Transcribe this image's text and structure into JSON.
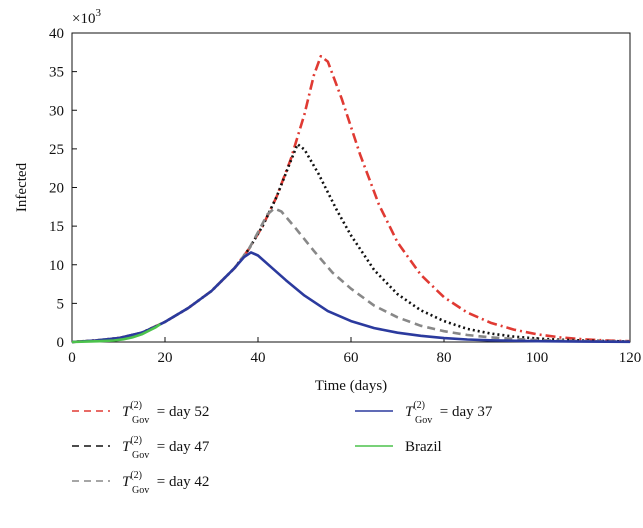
{
  "chart_data": {
    "type": "line",
    "xlabel": "Time (days)",
    "ylabel": "Infected",
    "y_multiplier": "×10",
    "y_multiplier_exp": "3",
    "xlim": [
      0,
      120
    ],
    "ylim": [
      0,
      40
    ],
    "x_ticks": [
      0,
      20,
      40,
      60,
      80,
      100,
      120
    ],
    "y_ticks": [
      0,
      5,
      10,
      15,
      20,
      25,
      30,
      35,
      40
    ],
    "grid": false,
    "legend_position": "bottom",
    "series": [
      {
        "name": "T_Gov^(2) = day 52",
        "legend": {
          "var": "T",
          "sub": "Gov",
          "sup": "(2)",
          "rest": " = day 52"
        },
        "color": "#e03a33",
        "style": "dashdot",
        "x": [
          0,
          5,
          10,
          15,
          20,
          25,
          30,
          35,
          38,
          41,
          44,
          47,
          50,
          52,
          53.5,
          55,
          58,
          62,
          66,
          70,
          75,
          80,
          85,
          90,
          95,
          100,
          105,
          110,
          115,
          120
        ],
        "y": [
          0,
          0.2,
          0.5,
          1.2,
          2.6,
          4.4,
          6.6,
          9.6,
          12.0,
          15.0,
          18.8,
          23.6,
          29.5,
          34.5,
          37.0,
          36.3,
          31.5,
          24.2,
          17.8,
          12.9,
          8.7,
          5.8,
          3.8,
          2.5,
          1.6,
          1.0,
          0.6,
          0.35,
          0.2,
          0.1
        ]
      },
      {
        "name": "T_Gov^(2) = day 47",
        "legend": {
          "var": "T",
          "sub": "Gov",
          "sup": "(2)",
          "rest": " = day 47"
        },
        "color": "#111111",
        "style": "dotted",
        "x": [
          0,
          5,
          10,
          15,
          20,
          25,
          30,
          35,
          38,
          41,
          44,
          46.5,
          48.5,
          50,
          53,
          57,
          60,
          65,
          70,
          75,
          80,
          85,
          90,
          95,
          100,
          105,
          110,
          115,
          120
        ],
        "y": [
          0,
          0.2,
          0.5,
          1.2,
          2.6,
          4.4,
          6.6,
          9.6,
          12.0,
          15.0,
          18.8,
          22.6,
          25.6,
          24.9,
          21.8,
          17.0,
          13.8,
          9.3,
          6.2,
          4.1,
          2.7,
          1.7,
          1.1,
          0.7,
          0.45,
          0.3,
          0.2,
          0.12,
          0.08
        ]
      },
      {
        "name": "T_Gov^(2) = day 42",
        "legend": {
          "var": "T",
          "sub": "Gov",
          "sup": "(2)",
          "rest": " = day 42"
        },
        "color": "#888888",
        "style": "dashed",
        "x": [
          0,
          5,
          10,
          15,
          20,
          25,
          30,
          35,
          38,
          40,
          42,
          43.5,
          45,
          48,
          52,
          56,
          60,
          65,
          70,
          75,
          80,
          85,
          90,
          95,
          100,
          110,
          120
        ],
        "y": [
          0,
          0.2,
          0.5,
          1.2,
          2.6,
          4.4,
          6.6,
          9.6,
          12.0,
          14.2,
          16.5,
          17.3,
          16.9,
          14.8,
          11.8,
          9.0,
          6.9,
          4.7,
          3.2,
          2.1,
          1.4,
          0.9,
          0.6,
          0.4,
          0.25,
          0.1,
          0.05
        ]
      },
      {
        "name": "T_Gov^(2) = day 37",
        "legend": {
          "var": "T",
          "sub": "Gov",
          "sup": "(2)",
          "rest": " = day 37"
        },
        "color": "#2b3a9e",
        "style": "solid",
        "x": [
          0,
          5,
          10,
          15,
          18,
          20,
          25,
          30,
          35,
          37,
          38.5,
          40,
          43,
          46,
          50,
          55,
          60,
          65,
          70,
          75,
          80,
          85,
          90,
          100,
          110,
          120
        ],
        "y": [
          0,
          0.2,
          0.5,
          1.2,
          2.0,
          2.6,
          4.4,
          6.6,
          9.6,
          11.0,
          11.6,
          11.2,
          9.6,
          8.0,
          6.0,
          4.0,
          2.7,
          1.8,
          1.2,
          0.8,
          0.5,
          0.33,
          0.22,
          0.1,
          0.05,
          0.02
        ]
      },
      {
        "name": "Brazil",
        "legend": {
          "var": "",
          "sub": "",
          "sup": "",
          "rest": "Brazil"
        },
        "color": "#4cc24c",
        "style": "solid",
        "x": [
          0,
          3,
          6,
          9,
          11,
          13,
          15,
          16,
          17,
          18,
          19
        ],
        "y": [
          0,
          0.05,
          0.1,
          0.2,
          0.35,
          0.6,
          1.0,
          1.3,
          1.6,
          1.9,
          2.3
        ]
      }
    ]
  }
}
